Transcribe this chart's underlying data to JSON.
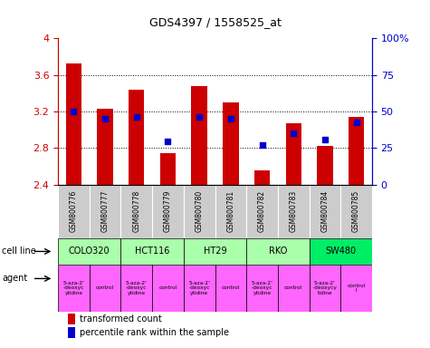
{
  "title": "GDS4397 / 1558525_at",
  "samples": [
    "GSM800776",
    "GSM800777",
    "GSM800778",
    "GSM800779",
    "GSM800780",
    "GSM800781",
    "GSM800782",
    "GSM800783",
    "GSM800784",
    "GSM800785"
  ],
  "bar_values": [
    3.72,
    3.23,
    3.44,
    2.74,
    3.48,
    3.3,
    2.55,
    3.07,
    2.82,
    3.14
  ],
  "blue_dot_values": [
    3.2,
    3.12,
    3.14,
    2.87,
    3.14,
    3.12,
    2.83,
    2.96,
    2.89,
    3.08
  ],
  "bar_bottom": 2.4,
  "ylim_left": [
    2.4,
    4.0
  ],
  "ylim_right": [
    0,
    100
  ],
  "yticks_left": [
    2.4,
    2.8,
    3.2,
    3.6,
    4.0
  ],
  "ytick_labels_left": [
    "2.4",
    "2.8",
    "3.2",
    "3.6",
    "4"
  ],
  "yticks_right": [
    0,
    25,
    50,
    75,
    100
  ],
  "ytick_labels_right": [
    "0",
    "25",
    "50",
    "75",
    "100%"
  ],
  "cell_lines": [
    {
      "name": "COLO320",
      "span": [
        0,
        2
      ],
      "color": "#aaffaa"
    },
    {
      "name": "HCT116",
      "span": [
        2,
        4
      ],
      "color": "#aaffaa"
    },
    {
      "name": "HT29",
      "span": [
        4,
        6
      ],
      "color": "#aaffaa"
    },
    {
      "name": "RKO",
      "span": [
        6,
        8
      ],
      "color": "#aaffaa"
    },
    {
      "name": "SW480",
      "span": [
        8,
        10
      ],
      "color": "#00ee66"
    }
  ],
  "agent_texts": [
    "5-aza-2'\n-deoxyc\nytidine",
    "control",
    "5-aza-2'\n-deoxyc\nytidine",
    "control",
    "5-aza-2'\n-deoxyc\nytidine",
    "control",
    "5-aza-2'\n-deoxyc\nytidine",
    "control",
    "5-aza-2'\n-deoxycy\ntidine",
    "control\nl"
  ],
  "agent_color": "#ff66ff",
  "bar_color": "#cc0000",
  "dot_color": "#0000cc",
  "grid_color": "#000000",
  "left_axis_color": "#cc0000",
  "right_axis_color": "#0000cc",
  "sample_bg_color": "#cccccc",
  "gridline_vals": [
    2.8,
    3.2,
    3.6
  ]
}
